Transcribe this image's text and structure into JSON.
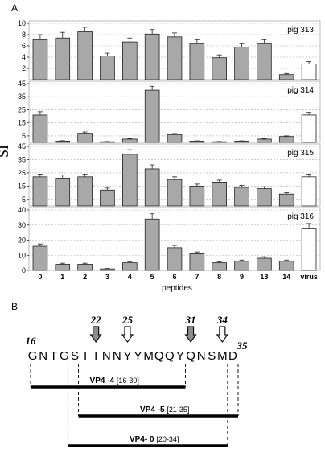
{
  "panel_a_letter": "A",
  "panel_b_letter": "B",
  "y_axis_label": "SI",
  "x_axis_label": "peptides",
  "categories": [
    "0",
    "1",
    "2",
    "3",
    "4",
    "5",
    "6",
    "7",
    "8",
    "9",
    "13",
    "14",
    "virus"
  ],
  "colors": {
    "bar_fill": "#a8a8a8",
    "virus_fill": "#ffffff",
    "stroke": "#222222",
    "grid": "#aaaaaa"
  },
  "chart_data": [
    {
      "type": "bar",
      "title": "pig 313",
      "categories": [
        "0",
        "1",
        "2",
        "3",
        "4",
        "5",
        "6",
        "7",
        "8",
        "9",
        "13",
        "14",
        "virus"
      ],
      "values": [
        7.1,
        7.4,
        8.5,
        4.2,
        6.7,
        8.1,
        7.6,
        6.4,
        3.9,
        5.8,
        6.4,
        0.9,
        2.8
      ],
      "errors": [
        0.9,
        1.0,
        0.8,
        0.5,
        0.7,
        0.8,
        0.7,
        0.7,
        0.5,
        0.6,
        0.7,
        0.2,
        0.4
      ],
      "yticks": [
        2,
        4,
        6,
        8,
        10
      ],
      "ylim": [
        0,
        10
      ]
    },
    {
      "type": "bar",
      "title": "pig 314",
      "categories": [
        "0",
        "1",
        "2",
        "3",
        "4",
        "5",
        "6",
        "7",
        "8",
        "9",
        "13",
        "14",
        "virus"
      ],
      "values": [
        21,
        1,
        7,
        0.5,
        2.5,
        40,
        6,
        1,
        0.5,
        1,
        2.5,
        4.5,
        21
      ],
      "errors": [
        2.5,
        0.3,
        1.0,
        0.2,
        0.5,
        3.0,
        0.8,
        0.2,
        0.2,
        0.2,
        0.4,
        0.5,
        2.0
      ],
      "yticks": [
        5,
        15,
        25,
        35,
        45
      ],
      "ylim": [
        0,
        45
      ]
    },
    {
      "type": "bar",
      "title": "pig 315",
      "categories": [
        "0",
        "1",
        "2",
        "3",
        "4",
        "5",
        "6",
        "7",
        "8",
        "9",
        "13",
        "14",
        "virus"
      ],
      "values": [
        22,
        21,
        22,
        12,
        39,
        28,
        20,
        15,
        18,
        14,
        13,
        9,
        22
      ],
      "errors": [
        2.0,
        2.5,
        2.0,
        1.5,
        3.5,
        3.0,
        2.0,
        1.5,
        1.5,
        1.5,
        1.5,
        1.0,
        2.0
      ],
      "yticks": [
        5,
        15,
        25,
        35,
        45
      ],
      "ylim": [
        0,
        45
      ]
    },
    {
      "type": "bar",
      "title": "pig 316",
      "categories": [
        "0",
        "1",
        "2",
        "3",
        "4",
        "5",
        "6",
        "7",
        "8",
        "9",
        "13",
        "14",
        "virus"
      ],
      "values": [
        16,
        4,
        4,
        1,
        5,
        34,
        15,
        11,
        5,
        6,
        8,
        6,
        28
      ],
      "errors": [
        1.5,
        0.7,
        0.7,
        0.3,
        0.7,
        3.5,
        1.5,
        1.2,
        0.7,
        0.8,
        1.0,
        0.8,
        3.0
      ],
      "yticks": [
        0,
        10,
        20,
        30,
        40
      ],
      "ylim": [
        0,
        40
      ]
    }
  ],
  "panel_b": {
    "sequence": [
      "G",
      "N",
      "T",
      "G",
      "S",
      "I",
      "I",
      "N",
      "N",
      "Y",
      "Y",
      "M",
      "Q",
      "Q",
      "Y",
      "Q",
      "N",
      "S",
      "M",
      "D"
    ],
    "start_label": "16",
    "end_label": "35",
    "markers": [
      {
        "label": "22",
        "residue": 22,
        "style": "filled"
      },
      {
        "label": "25",
        "residue": 25,
        "style": "open"
      },
      {
        "label": "31",
        "residue": 31,
        "style": "filled"
      },
      {
        "label": "34",
        "residue": 34,
        "style": "open"
      }
    ],
    "peptides": [
      {
        "name": "VP4 -4",
        "range_text": "[16-30]",
        "start": 16,
        "end": 30
      },
      {
        "name": "VP4 -5",
        "range_text": "[21-35]",
        "start": 21,
        "end": 35
      },
      {
        "name": "VP4- 0",
        "range_text": "[20-34]",
        "start": 20,
        "end": 34
      }
    ]
  }
}
